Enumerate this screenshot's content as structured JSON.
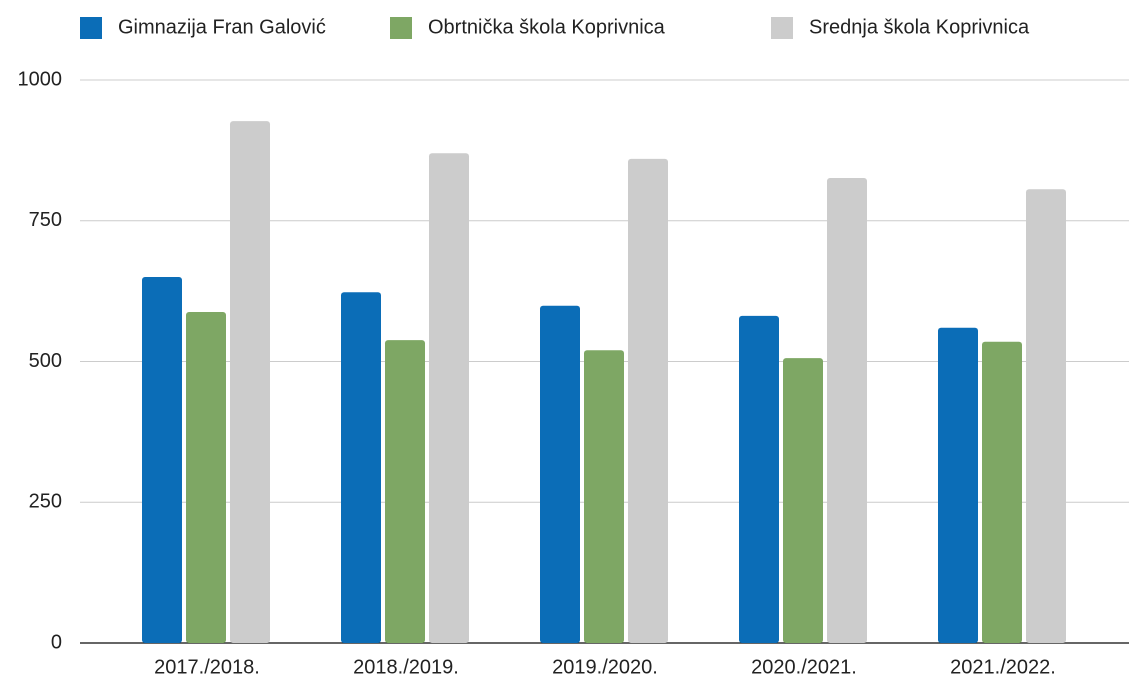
{
  "chart_data": {
    "type": "bar",
    "categories": [
      "2017./2018.",
      "2018./2019.",
      "2019./2020.",
      "2020./2021.",
      "2021./2022."
    ],
    "series": [
      {
        "name": "Gimnazija Fran Galović",
        "color": "#0b6db7",
        "values": [
          650,
          623,
          599,
          581,
          560
        ]
      },
      {
        "name": "Obrtnička škola Koprivnica",
        "color": "#7ea764",
        "values": [
          588,
          538,
          520,
          506,
          535
        ]
      },
      {
        "name": "Srednja škola Koprivnica",
        "color": "#cccccc",
        "values": [
          927,
          870,
          860,
          826,
          806
        ]
      }
    ],
    "ylim": [
      0,
      1000
    ],
    "yticks": [
      0,
      250,
      500,
      750,
      1000
    ],
    "grid": true,
    "legend": "top"
  }
}
